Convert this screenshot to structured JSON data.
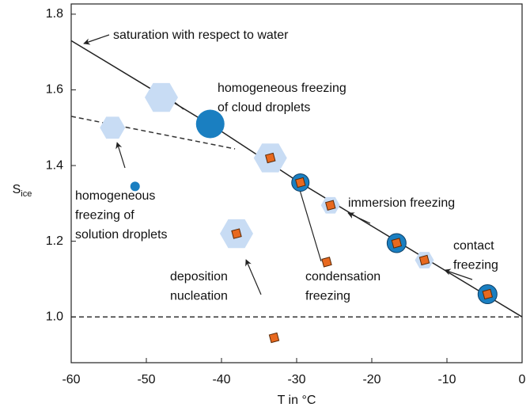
{
  "chart_data": {
    "type": "phase-diagram",
    "x_label": "T in °C",
    "y_label": {
      "main": "S",
      "sub": "ice"
    },
    "xlim": [
      -60,
      0
    ],
    "ylim": [
      0.879,
      1.827
    ],
    "xticks": [
      -60,
      -50,
      -40,
      -30,
      -20,
      -10,
      0
    ],
    "yticks": [
      {
        "value": 1.0,
        "label": "1.0"
      },
      1.2,
      1.4,
      1.6,
      {
        "value": 1.8,
        "label": "1.8"
      }
    ],
    "saturation_line": {
      "x": [
        -60,
        -50,
        -40,
        -30,
        -20,
        -10,
        0
      ],
      "values": [
        1.73,
        1.61,
        1.49,
        1.36,
        1.24,
        1.12,
        1.0
      ],
      "color": "#222222"
    },
    "solution_line": {
      "x": [
        -60,
        -38.2
      ],
      "values": [
        1.53,
        1.444
      ],
      "color": "#333333"
    },
    "ice_saturation": 1.0,
    "circles": {
      "color": "#1a7fc1",
      "x": [
        -41.5,
        -51.5,
        -29.5,
        -16.7,
        -4.6
      ],
      "y": [
        1.51,
        1.345,
        1.355,
        1.195,
        1.06
      ]
    },
    "hexagons": {
      "color": "#c8dcf4",
      "x": [
        -48,
        -54.5,
        -33.5,
        -25.5,
        -38,
        -13
      ],
      "y": [
        1.58,
        1.5,
        1.42,
        1.295,
        1.22,
        1.15
      ]
    },
    "cubes": {
      "color": "#e8691f",
      "x": [
        -33.5,
        -29.5,
        -25.5,
        -38,
        -16.7,
        -13,
        -4.6,
        -26,
        -33
      ],
      "y": [
        1.42,
        1.355,
        1.295,
        1.22,
        1.195,
        1.15,
        1.06,
        1.145,
        0.945
      ]
    },
    "annotations": [
      [
        "saturation with respect to water"
      ],
      [
        "homogeneous freezing",
        "of cloud droplets"
      ],
      [
        "homogeneous",
        "freezing of",
        "solution droplets"
      ],
      [
        "immersion freezing"
      ],
      [
        "contact",
        "freezing"
      ],
      [
        "deposition",
        "nucleation"
      ],
      [
        "condensation",
        "freezing"
      ]
    ]
  }
}
